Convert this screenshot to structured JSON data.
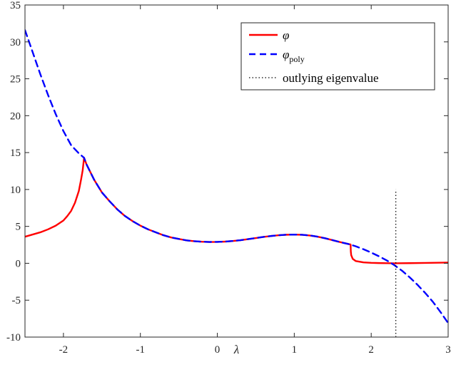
{
  "chart_data": {
    "type": "line",
    "title": "",
    "xlabel": "λ",
    "ylabel": "",
    "xlim": [
      -2.5,
      3
    ],
    "ylim": [
      -10,
      35
    ],
    "xticks": [
      -2,
      -1,
      0,
      1,
      2,
      3
    ],
    "xtick_labels": [
      "-2",
      "-1",
      "0",
      "1",
      "2",
      "3"
    ],
    "yticks": [
      -10,
      -5,
      0,
      5,
      10,
      15,
      20,
      25,
      30,
      35
    ],
    "ytick_labels": [
      "-10",
      "-5",
      "0",
      "5",
      "10",
      "15",
      "20",
      "25",
      "30",
      "35"
    ],
    "grid": false,
    "legend_position": "top-right",
    "series": [
      {
        "name": "φ",
        "color": "#ff0000",
        "style": "solid",
        "x": [
          -2.5,
          -2.4,
          -2.3,
          -2.2,
          -2.1,
          -2.0,
          -1.95,
          -1.9,
          -1.85,
          -1.8,
          -1.77,
          -1.75,
          -1.732,
          -1.7,
          -1.6,
          -1.5,
          -1.4,
          -1.3,
          -1.2,
          -1.1,
          -1.0,
          -0.9,
          -0.8,
          -0.7,
          -0.6,
          -0.5,
          -0.4,
          -0.3,
          -0.2,
          -0.1,
          0.0,
          0.1,
          0.2,
          0.3,
          0.4,
          0.5,
          0.6,
          0.7,
          0.8,
          0.9,
          1.0,
          1.1,
          1.2,
          1.3,
          1.4,
          1.5,
          1.6,
          1.7,
          1.732,
          1.735,
          1.74,
          1.76,
          1.8,
          1.9,
          2.0,
          2.1,
          2.2,
          2.3,
          2.5,
          2.7,
          3.0
        ],
        "y": [
          3.6,
          3.9,
          4.2,
          4.6,
          5.1,
          5.8,
          6.4,
          7.1,
          8.2,
          9.8,
          11.4,
          12.6,
          14.3,
          13.4,
          11.3,
          9.6,
          8.4,
          7.3,
          6.4,
          5.7,
          5.1,
          4.6,
          4.2,
          3.8,
          3.5,
          3.3,
          3.1,
          2.99,
          2.92,
          2.89,
          2.9,
          2.94,
          3.02,
          3.13,
          3.27,
          3.42,
          3.57,
          3.7,
          3.8,
          3.87,
          3.89,
          3.86,
          3.77,
          3.61,
          3.39,
          3.13,
          2.86,
          2.62,
          2.55,
          1.6,
          1.1,
          0.6,
          0.3,
          0.12,
          0.06,
          0.03,
          0.01,
          0.0,
          0.02,
          0.05,
          0.1
        ]
      },
      {
        "name": "φpoly",
        "color": "#0000ff",
        "style": "dashed",
        "x": [
          -2.5,
          -2.4,
          -2.3,
          -2.2,
          -2.1,
          -2.0,
          -1.9,
          -1.8,
          -1.732,
          -1.7,
          -1.6,
          -1.5,
          -1.4,
          -1.3,
          -1.2,
          -1.1,
          -1.0,
          -0.9,
          -0.8,
          -0.7,
          -0.6,
          -0.5,
          -0.4,
          -0.3,
          -0.2,
          -0.1,
          0.0,
          0.1,
          0.2,
          0.3,
          0.4,
          0.5,
          0.6,
          0.7,
          0.8,
          0.9,
          1.0,
          1.1,
          1.2,
          1.3,
          1.4,
          1.5,
          1.6,
          1.7,
          1.8,
          1.9,
          2.0,
          2.1,
          2.2,
          2.3,
          2.4,
          2.5,
          2.6,
          2.7,
          2.8,
          2.9,
          3.0
        ],
        "y": [
          31.6,
          28.6,
          25.6,
          22.8,
          20.2,
          17.9,
          16.0,
          14.9,
          14.3,
          13.4,
          11.3,
          9.6,
          8.4,
          7.3,
          6.4,
          5.7,
          5.1,
          4.6,
          4.2,
          3.8,
          3.5,
          3.3,
          3.1,
          2.99,
          2.92,
          2.89,
          2.9,
          2.94,
          3.02,
          3.13,
          3.27,
          3.42,
          3.57,
          3.7,
          3.8,
          3.87,
          3.89,
          3.86,
          3.77,
          3.61,
          3.39,
          3.13,
          2.86,
          2.62,
          2.3,
          1.9,
          1.45,
          0.95,
          0.4,
          -0.25,
          -1.0,
          -1.9,
          -2.9,
          -4.0,
          -5.2,
          -6.6,
          -8.1
        ]
      },
      {
        "name": "outlying eigenvalue",
        "color": "#000000",
        "style": "dotted",
        "x": [
          2.32,
          2.32
        ],
        "y": [
          -10,
          10
        ]
      }
    ]
  },
  "legend": {
    "items": [
      {
        "main": "φ",
        "sub": ""
      },
      {
        "main": "φ",
        "sub": "poly"
      },
      {
        "main": "outlying eigenvalue",
        "sub": ""
      }
    ]
  }
}
